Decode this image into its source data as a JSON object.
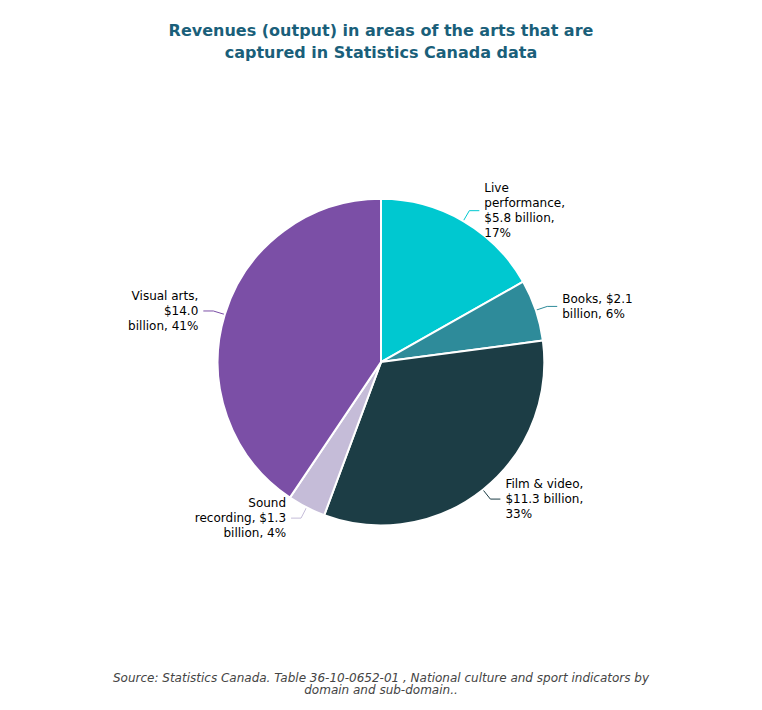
{
  "chart_data": {
    "type": "pie",
    "title": "Revenues (output) in areas of the arts that are\ncaptured in Statistics Canada data",
    "categories": [
      "Live\nperformance,\n$5.8 billion,\n17%",
      "Books, $2.1\nbillion, 6%",
      "Film & video,\n$11.3 billion,\n33%",
      "Sound\nrecording, $1.3\nbillion, 4%",
      "Visual arts,\n$14.0\nbillion, 41%"
    ],
    "values": [
      5.8,
      2.1,
      11.3,
      1.3,
      14.0
    ],
    "colors": [
      "#00c8d0",
      "#2e8b9a",
      "#1c3d45",
      "#c5bcd8",
      "#7b4fa6"
    ],
    "annotations": [
      "Source: Statistics Canada. Table 36-10-0652-01 , National culture and sport indicators by\ndomain and sub-domain.."
    ],
    "legend": "none"
  }
}
